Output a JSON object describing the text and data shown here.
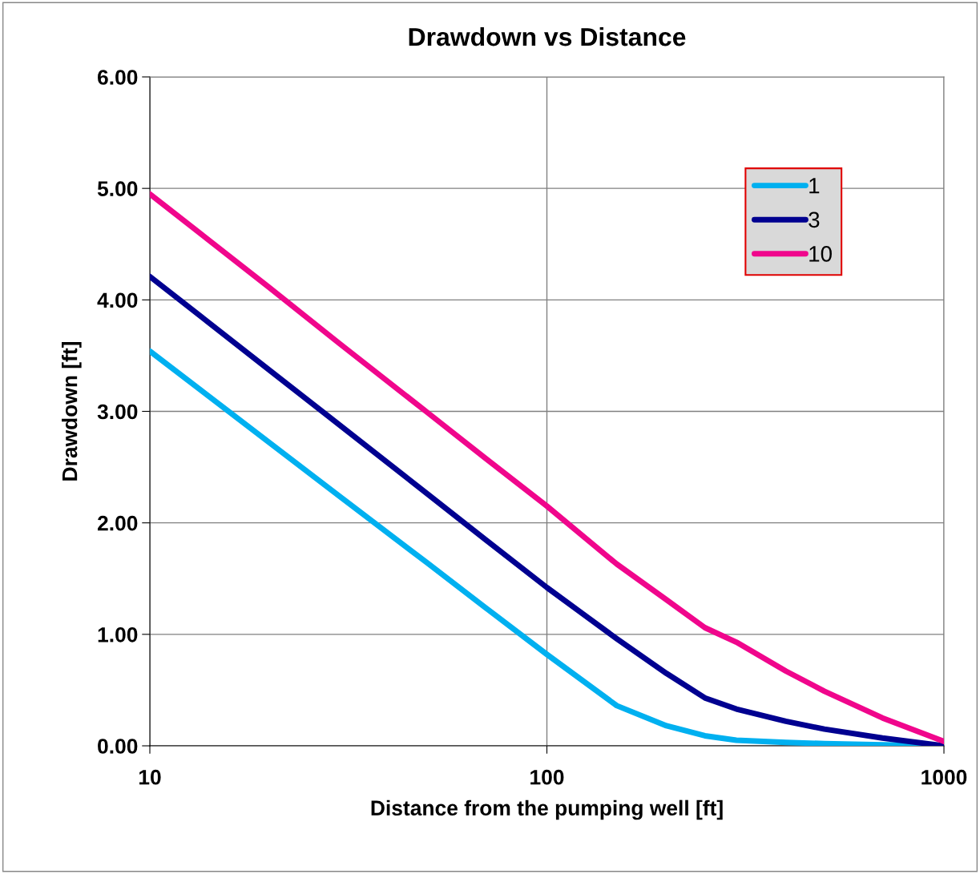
{
  "chart_data": {
    "type": "line",
    "title": "Drawdown vs Distance",
    "xlabel": "Distance from the pumping well [ft]",
    "ylabel": "Drawdown [ft]",
    "x": [
      10,
      20,
      30,
      50,
      70,
      100,
      150,
      200,
      250,
      300,
      400,
      500,
      700,
      1000
    ],
    "series": [
      {
        "name": "1",
        "color": "#00b0f0",
        "values": [
          3.54,
          2.72,
          2.24,
          1.64,
          1.24,
          0.82,
          0.36,
          0.18,
          0.09,
          0.05,
          0.03,
          0.02,
          0.01,
          0.0
        ]
      },
      {
        "name": "3",
        "color": "#000090",
        "values": [
          4.21,
          3.37,
          2.88,
          2.26,
          1.85,
          1.42,
          0.96,
          0.65,
          0.43,
          0.33,
          0.22,
          0.15,
          0.07,
          0.0
        ]
      },
      {
        "name": "10",
        "color": "#f0068c",
        "values": [
          4.95,
          4.11,
          3.61,
          2.99,
          2.58,
          2.15,
          1.63,
          1.31,
          1.06,
          0.93,
          0.67,
          0.49,
          0.25,
          0.04
        ]
      }
    ],
    "log": "x",
    "xlim": [
      10,
      1000
    ],
    "xticks": [
      10,
      100,
      1000
    ],
    "ylim": [
      0,
      6
    ],
    "yticks": [
      {
        "value": 0,
        "label": "0.00"
      },
      {
        "value": 1,
        "label": "1.00"
      },
      {
        "value": 2,
        "label": "2.00"
      },
      {
        "value": 3,
        "label": "3.00"
      },
      {
        "value": 4,
        "label": "4.00"
      },
      {
        "value": 5,
        "label": "5.00"
      },
      {
        "value": 6,
        "label": "6.00"
      }
    ],
    "grid": true,
    "legend": "top right",
    "marker": "none",
    "line_style": "solid"
  }
}
